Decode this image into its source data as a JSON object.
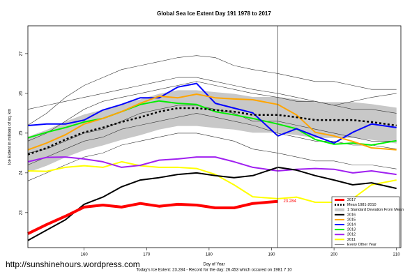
{
  "chart_data": {
    "type": "line",
    "title": "Global Sea Ice Extent Day 191 1978 to 2017",
    "y_label": "Ice Extent in millions of sq. km",
    "x_label": "Day of Year",
    "footer": "Today's Ice Extent: 23.284  - Record for the day: 26.453 which occured on 1981 7 10",
    "watermark": "http://sunshinehours.wordpress.com",
    "xlim": [
      151,
      210.7
    ],
    "ylim": [
      22.12,
      27.7
    ],
    "xticks": [
      160,
      170,
      180,
      190,
      200,
      210
    ],
    "yticks": [
      23,
      24,
      25,
      26,
      27
    ],
    "vline": 191,
    "x": [
      151,
      154,
      157,
      160,
      163,
      166,
      169,
      172,
      175,
      178,
      181,
      184,
      187,
      191,
      194,
      197,
      200,
      203,
      206,
      210
    ],
    "series": [
      {
        "name": "2017",
        "color": "#ff0000",
        "width": 4,
        "end_label": "23.284",
        "values": [
          22.47,
          22.7,
          22.91,
          23.14,
          23.19,
          23.14,
          23.23,
          23.16,
          23.21,
          23.19,
          23.12,
          23.12,
          23.23,
          23.284,
          null,
          null,
          null,
          null,
          null,
          null
        ]
      },
      {
        "name": "Mean 1981-2010",
        "color": "#000000",
        "width": 2.5,
        "dash": true,
        "values": [
          24.46,
          24.63,
          24.84,
          25.02,
          25.14,
          25.28,
          25.4,
          25.54,
          25.63,
          25.63,
          25.58,
          25.54,
          25.46,
          25.46,
          25.4,
          25.33,
          25.33,
          25.33,
          25.28,
          25.19
        ]
      },
      {
        "name": "1 Standard Deviation From Mean",
        "color": "#c8c8c8",
        "band": true,
        "upper": [
          24.91,
          25.08,
          25.29,
          25.47,
          25.59,
          25.73,
          25.85,
          25.99,
          26.08,
          26.08,
          26.03,
          25.99,
          25.91,
          25.91,
          25.85,
          25.78,
          25.78,
          25.78,
          25.73,
          25.64
        ],
        "lower": [
          24.01,
          24.18,
          24.39,
          24.57,
          24.69,
          24.83,
          24.95,
          25.09,
          25.18,
          25.18,
          25.13,
          25.09,
          25.01,
          25.01,
          24.95,
          24.88,
          24.88,
          24.88,
          24.83,
          24.74
        ]
      },
      {
        "name": "2016",
        "color": "#000000",
        "width": 2,
        "values": [
          22.3,
          22.56,
          22.82,
          23.21,
          23.39,
          23.65,
          23.82,
          23.88,
          23.96,
          24.0,
          23.93,
          23.88,
          23.93,
          24.14,
          24.07,
          23.93,
          23.82,
          23.7,
          23.75,
          23.61
        ]
      },
      {
        "name": "2015",
        "color": "#ffa500",
        "width": 2,
        "values": [
          24.58,
          24.75,
          24.96,
          25.23,
          25.37,
          25.54,
          25.75,
          25.93,
          25.89,
          25.98,
          25.89,
          25.86,
          25.84,
          25.72,
          25.46,
          25.02,
          24.93,
          24.79,
          24.63,
          24.58
        ]
      },
      {
        "name": "2014",
        "color": "#0000ff",
        "width": 2,
        "values": [
          25.19,
          25.23,
          25.23,
          25.33,
          25.58,
          25.72,
          25.89,
          25.89,
          26.16,
          26.25,
          25.75,
          25.63,
          25.51,
          24.93,
          25.11,
          24.93,
          24.75,
          25.02,
          25.23,
          25.14
        ]
      },
      {
        "name": "2013",
        "color": "#00ee00",
        "width": 2,
        "values": [
          24.88,
          25.02,
          25.14,
          25.28,
          25.37,
          25.54,
          25.72,
          25.81,
          25.75,
          25.72,
          25.54,
          25.46,
          25.37,
          25.23,
          25.11,
          24.84,
          24.72,
          24.75,
          24.7,
          24.81
        ]
      },
      {
        "name": "2012",
        "color": "#a020f0",
        "width": 2,
        "values": [
          24.28,
          24.39,
          24.4,
          24.35,
          24.28,
          24.14,
          24.19,
          24.32,
          24.35,
          24.4,
          24.4,
          24.28,
          24.14,
          24.05,
          24.09,
          24.11,
          24.09,
          24.0,
          24.05,
          23.96
        ]
      },
      {
        "name": "2011",
        "color": "#ffff00",
        "width": 2,
        "values": [
          24.05,
          24.04,
          24.14,
          24.18,
          24.14,
          24.28,
          24.18,
          24.14,
          24.14,
          24.11,
          23.96,
          23.7,
          23.4,
          23.35,
          23.39,
          23.26,
          23.26,
          23.35,
          23.7,
          23.82
        ]
      },
      {
        "name": "Every Other Year",
        "color": "#333333",
        "width": 0.6,
        "lines": [
          [
            25.2,
            25.5,
            25.9,
            26.2,
            26.4,
            26.6,
            26.7,
            26.8,
            26.9,
            26.95,
            26.9,
            26.7,
            26.6,
            26.5,
            26.4,
            26.3,
            26.3,
            26.2,
            26.1,
            26.1
          ],
          [
            24.8,
            25.0,
            25.3,
            25.6,
            25.8,
            25.9,
            26.0,
            26.1,
            26.2,
            26.3,
            26.2,
            26.1,
            26.0,
            25.9,
            25.8,
            25.8,
            25.7,
            25.6,
            25.6,
            25.5
          ],
          [
            24.2,
            24.4,
            24.6,
            24.8,
            24.9,
            25.1,
            25.2,
            25.3,
            25.4,
            25.5,
            25.4,
            25.3,
            25.2,
            25.0,
            24.9,
            24.8,
            24.8,
            24.7,
            24.7,
            24.6
          ],
          [
            23.8,
            24.0,
            24.2,
            24.4,
            24.5,
            24.7,
            24.8,
            24.9,
            25.0,
            25.0,
            24.9,
            24.8,
            24.6,
            24.5,
            24.4,
            24.3,
            24.3,
            24.2,
            24.2,
            24.1
          ],
          [
            25.6,
            25.7,
            25.8,
            25.9,
            26.0,
            26.1,
            26.2,
            26.3,
            26.4,
            26.4,
            26.3,
            26.2,
            26.1,
            26.0,
            25.9,
            25.8,
            25.7,
            25.8,
            25.9,
            26.0
          ],
          [
            24.5,
            24.6,
            24.8,
            25.0,
            25.1,
            25.3,
            25.5,
            25.6,
            25.7,
            25.7,
            25.6,
            25.5,
            25.3,
            25.3,
            25.2,
            25.1,
            25.0,
            24.9,
            24.8,
            24.8
          ]
        ]
      }
    ]
  }
}
